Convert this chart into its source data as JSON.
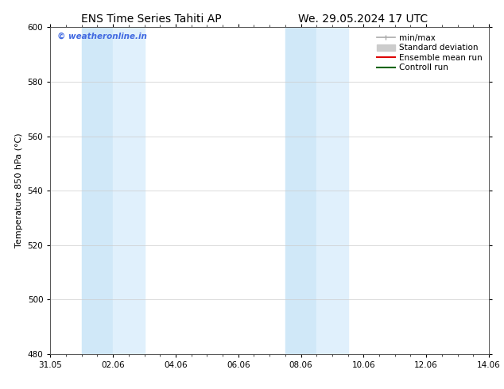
{
  "title_left": "ENS Time Series Tahiti AP",
  "title_right": "We. 29.05.2024 17 UTC",
  "ylabel": "Temperature 850 hPa (°C)",
  "ylim": [
    480,
    600
  ],
  "yticks": [
    480,
    500,
    520,
    540,
    560,
    580,
    600
  ],
  "xtick_labels": [
    "31.05",
    "02.06",
    "04.06",
    "06.06",
    "08.06",
    "10.06",
    "12.06",
    "14.06"
  ],
  "xtick_positions_days": [
    0,
    2,
    4,
    6,
    8,
    10,
    12,
    14
  ],
  "xlim_days": [
    0,
    14
  ],
  "shaded_bands": [
    {
      "x_start_days": 1.0,
      "x_end_days": 2.0,
      "color": "#d0e8f8"
    },
    {
      "x_start_days": 2.0,
      "x_end_days": 3.0,
      "color": "#e0f0fc"
    },
    {
      "x_start_days": 7.5,
      "x_end_days": 8.5,
      "color": "#d0e8f8"
    },
    {
      "x_start_days": 8.5,
      "x_end_days": 9.5,
      "color": "#e0f0fc"
    }
  ],
  "watermark_text": "© weatheronline.in",
  "watermark_color": "#4169e1",
  "background_color": "#ffffff",
  "plot_bg_color": "#ffffff",
  "legend_entries": [
    {
      "label": "min/max",
      "color": "#aaaaaa"
    },
    {
      "label": "Standard deviation",
      "color": "#cccccc"
    },
    {
      "label": "Ensemble mean run",
      "color": "#dd0000"
    },
    {
      "label": "Controll run",
      "color": "#006400"
    }
  ],
  "title_fontsize": 10,
  "label_fontsize": 8,
  "tick_fontsize": 7.5,
  "legend_fontsize": 7.5,
  "watermark_fontsize": 7.5
}
